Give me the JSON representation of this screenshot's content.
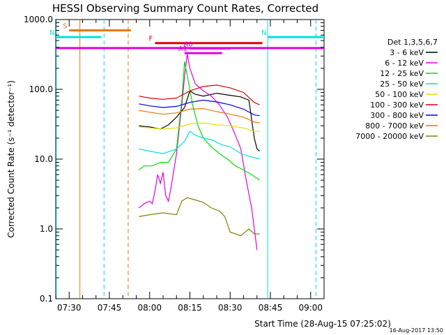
{
  "chart_data": {
    "type": "line",
    "title": "HESSI Observing Summary Count Rates, Corrected",
    "xlabel": "Start Time (28-Aug-15 07:25:02)",
    "ylabel": "Corrected Count Rate (s⁻¹ detector⁻¹)",
    "y_scale": "log",
    "ylim": [
      0.1,
      1000
    ],
    "xlim_minutes": [
      445,
      545
    ],
    "x_ticks": [
      {
        "label": "07:30",
        "t": 450
      },
      {
        "label": "07:45",
        "t": 465
      },
      {
        "label": "08:00",
        "t": 480
      },
      {
        "label": "08:15",
        "t": 495
      },
      {
        "label": "08:30",
        "t": 510
      },
      {
        "label": "08:45",
        "t": 525
      },
      {
        "label": "09:00",
        "t": 540
      }
    ],
    "y_ticks": [
      {
        "label": "0.1",
        "v": 0.1
      },
      {
        "label": "1.0",
        "v": 1
      },
      {
        "label": "10.0",
        "v": 10
      },
      {
        "label": "100.0",
        "v": 100
      },
      {
        "label": "1000.0",
        "v": 1000
      }
    ],
    "legend_title": "Det 1,3,5,6,7",
    "series": [
      {
        "name": "3 - 6 keV",
        "color": "#000000",
        "points": [
          [
            476,
            30
          ],
          [
            480,
            29
          ],
          [
            484,
            27
          ],
          [
            487,
            31
          ],
          [
            490,
            40
          ],
          [
            493,
            55
          ],
          [
            495,
            95
          ],
          [
            497,
            85
          ],
          [
            500,
            80
          ],
          [
            505,
            88
          ],
          [
            510,
            82
          ],
          [
            514,
            78
          ],
          [
            517,
            70
          ],
          [
            519,
            20
          ],
          [
            520,
            14
          ],
          [
            521,
            13
          ]
        ]
      },
      {
        "name": "6 - 12 keV",
        "color": "#e000e0",
        "points": [
          [
            476,
            2.0
          ],
          [
            478,
            2.3
          ],
          [
            480,
            2.5
          ],
          [
            481,
            2.3
          ],
          [
            482,
            3.5
          ],
          [
            483,
            6.0
          ],
          [
            484,
            4.5
          ],
          [
            485,
            6.5
          ],
          [
            486,
            3.0
          ],
          [
            487,
            2.5
          ],
          [
            488,
            4.0
          ],
          [
            490,
            12
          ],
          [
            492,
            60
          ],
          [
            493,
            150
          ],
          [
            494,
            320
          ],
          [
            495,
            200
          ],
          [
            497,
            120
          ],
          [
            500,
            95
          ],
          [
            503,
            80
          ],
          [
            506,
            60
          ],
          [
            509,
            40
          ],
          [
            512,
            22
          ],
          [
            514,
            14
          ],
          [
            516,
            5
          ],
          [
            518,
            2.0
          ],
          [
            520,
            0.5
          ]
        ]
      },
      {
        "name": "12 - 25 keV",
        "color": "#00e000",
        "points": [
          [
            476,
            7
          ],
          [
            478,
            8
          ],
          [
            481,
            8
          ],
          [
            484,
            9
          ],
          [
            487,
            9
          ],
          [
            490,
            14
          ],
          [
            492,
            70
          ],
          [
            493,
            250
          ],
          [
            494,
            160
          ],
          [
            496,
            60
          ],
          [
            498,
            30
          ],
          [
            500,
            20
          ],
          [
            503,
            15
          ],
          [
            506,
            12
          ],
          [
            509,
            10
          ],
          [
            512,
            8
          ],
          [
            515,
            7
          ],
          [
            518,
            6
          ],
          [
            521,
            5
          ]
        ]
      },
      {
        "name": "25 - 50 keV",
        "color": "#00e0e0",
        "points": [
          [
            476,
            14
          ],
          [
            480,
            13
          ],
          [
            485,
            12
          ],
          [
            490,
            14
          ],
          [
            493,
            18
          ],
          [
            495,
            25
          ],
          [
            497,
            22
          ],
          [
            500,
            20
          ],
          [
            503,
            19
          ],
          [
            507,
            16
          ],
          [
            510,
            15
          ],
          [
            514,
            12
          ],
          [
            517,
            11
          ],
          [
            521,
            10
          ]
        ]
      },
      {
        "name": "50 - 100 keV",
        "color": "#e0e000",
        "points": [
          [
            476,
            29
          ],
          [
            480,
            28
          ],
          [
            485,
            27
          ],
          [
            490,
            28
          ],
          [
            495,
            32
          ],
          [
            500,
            33
          ],
          [
            505,
            31
          ],
          [
            510,
            30
          ],
          [
            515,
            28
          ],
          [
            519,
            25
          ],
          [
            521,
            25
          ]
        ]
      },
      {
        "name": "100 - 300 keV",
        "color": "#e00000",
        "points": [
          [
            476,
            80
          ],
          [
            480,
            75
          ],
          [
            485,
            72
          ],
          [
            490,
            75
          ],
          [
            495,
            95
          ],
          [
            500,
            110
          ],
          [
            505,
            115
          ],
          [
            510,
            105
          ],
          [
            515,
            90
          ],
          [
            519,
            65
          ],
          [
            521,
            60
          ]
        ]
      },
      {
        "name": "300 - 800 keV",
        "color": "#0000e0",
        "points": [
          [
            476,
            62
          ],
          [
            480,
            58
          ],
          [
            485,
            55
          ],
          [
            490,
            57
          ],
          [
            495,
            65
          ],
          [
            500,
            70
          ],
          [
            505,
            66
          ],
          [
            510,
            60
          ],
          [
            515,
            52
          ],
          [
            519,
            43
          ],
          [
            521,
            42
          ]
        ]
      },
      {
        "name": "800 - 7000 keV",
        "color": "#e87800",
        "points": [
          [
            476,
            50
          ],
          [
            480,
            47
          ],
          [
            485,
            44
          ],
          [
            490,
            46
          ],
          [
            495,
            52
          ],
          [
            500,
            53
          ],
          [
            505,
            48
          ],
          [
            510,
            44
          ],
          [
            515,
            40
          ],
          [
            519,
            34
          ],
          [
            521,
            33
          ]
        ]
      },
      {
        "name": "7000 - 20000 keV",
        "color": "#808000",
        "points": [
          [
            476,
            1.5
          ],
          [
            480,
            1.6
          ],
          [
            485,
            1.7
          ],
          [
            490,
            1.6
          ],
          [
            492,
            2.5
          ],
          [
            494,
            2.8
          ],
          [
            497,
            2.6
          ],
          [
            500,
            2.4
          ],
          [
            503,
            2.0
          ],
          [
            506,
            1.8
          ],
          [
            508,
            1.5
          ],
          [
            510,
            0.9
          ],
          [
            514,
            0.8
          ],
          [
            517,
            1.0
          ],
          [
            519,
            0.85
          ],
          [
            521,
            0.85
          ]
        ]
      }
    ],
    "flags": [
      {
        "label": "S",
        "color": "#e87800",
        "t_start": 450,
        "t_end": 473,
        "v": 700
      },
      {
        "label": "N",
        "color": "#00e0e0",
        "t_start": 445,
        "t_end": 462,
        "v": 560
      },
      {
        "label": "N",
        "color": "#00e0e0",
        "t_start": 524,
        "t_end": 545,
        "v": 560
      },
      {
        "label": "F",
        "color": "#e00000",
        "t_start": 482,
        "t_end": 522,
        "v": 460
      },
      {
        "label": "",
        "color": "#e000e0",
        "t_start": 445,
        "t_end": 545,
        "v": 390
      },
      {
        "label": "A0",
        "color": "#e000e0",
        "t_start": 495,
        "t_end": 510,
        "v": 385
      },
      {
        "label": "A1",
        "color": "#e000e0",
        "t_start": 493,
        "t_end": 507,
        "v": 330
      }
    ],
    "vlines": [
      {
        "t": 445.2,
        "color": "#00e0e0",
        "dash": false
      },
      {
        "t": 454,
        "color": "#e87800",
        "dash": false
      },
      {
        "t": 463,
        "color": "#00e0e0",
        "dash": true
      },
      {
        "t": 472,
        "color": "#e87800",
        "dash": true
      },
      {
        "t": 524,
        "color": "#00e0e0",
        "dash": false
      },
      {
        "t": 542,
        "color": "#00e0e0",
        "dash": true
      }
    ],
    "stamp": "16-Aug-2017 13:50"
  }
}
